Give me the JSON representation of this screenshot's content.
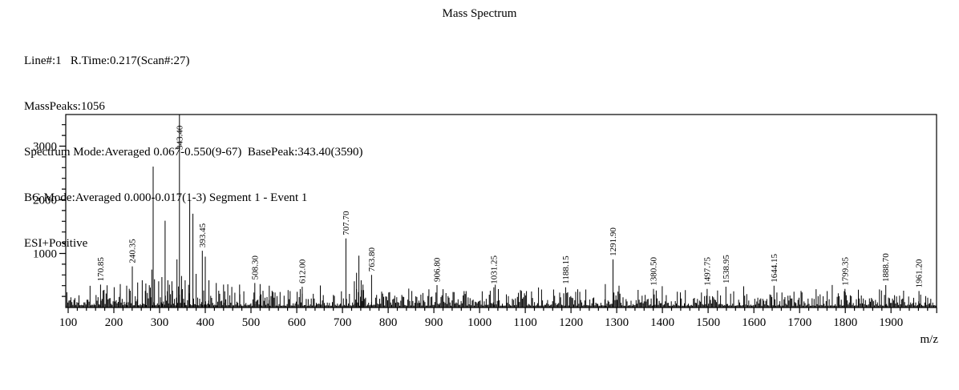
{
  "title": "Mass Spectrum",
  "header_lines": [
    "Line#:1   R.Time:0.217(Scan#:27)",
    "MassPeaks:1056",
    "Spectrum Mode:Averaged 0.067-0.550(9-67)  BasePeak:343.40(3590)",
    "BG Mode:Averaged 0.000-0.017(1-3) Segment 1 - Event 1",
    "ESI+Positive"
  ],
  "chart_data": {
    "type": "bar",
    "subtype": "mass-spectrum-stick-plot",
    "title": "Mass Spectrum",
    "xlabel": "m/z",
    "ylabel": "",
    "xlim": [
      95,
      2000
    ],
    "ylim": [
      0,
      3600
    ],
    "grid": false,
    "x_major_tick_step": 100,
    "x_minor_tick_step": 20,
    "y_major_tick_step": 1000,
    "y_minor_tick_step": 200,
    "x_tick_labels": [
      "100",
      "200",
      "300",
      "400",
      "500",
      "600",
      "700",
      "800",
      "900",
      "1000",
      "1100",
      "1200",
      "1300",
      "1400",
      "1500",
      "1600",
      "1700",
      "1800",
      "1900"
    ],
    "y_tick_labels": [
      "1000",
      "2000",
      "3000"
    ],
    "base_peak": {
      "mz": 343.4,
      "intensity": 3590
    },
    "labeled_peaks": [
      {
        "mz": 170.85,
        "intensity": 420,
        "label": "170.85"
      },
      {
        "mz": 240.35,
        "intensity": 760,
        "label": "240.35"
      },
      {
        "mz": 343.4,
        "intensity": 3590,
        "label": "343.40"
      },
      {
        "mz": 393.45,
        "intensity": 1050,
        "label": "393.45"
      },
      {
        "mz": 508.3,
        "intensity": 450,
        "label": "508.30"
      },
      {
        "mz": 612.0,
        "intensity": 380,
        "label": "612.00"
      },
      {
        "mz": 707.7,
        "intensity": 1280,
        "label": "707.70"
      },
      {
        "mz": 763.8,
        "intensity": 600,
        "label": "763.80"
      },
      {
        "mz": 906.8,
        "intensity": 410,
        "label": "906.80"
      },
      {
        "mz": 1031.25,
        "intensity": 370,
        "label": "1031.25"
      },
      {
        "mz": 1188.15,
        "intensity": 370,
        "label": "1188.15"
      },
      {
        "mz": 1291.9,
        "intensity": 890,
        "label": "1291.90"
      },
      {
        "mz": 1380.5,
        "intensity": 340,
        "label": "1380.50"
      },
      {
        "mz": 1497.75,
        "intensity": 340,
        "label": "1497.75"
      },
      {
        "mz": 1538.95,
        "intensity": 380,
        "label": "1538.95"
      },
      {
        "mz": 1644.15,
        "intensity": 400,
        "label": "1644.15"
      },
      {
        "mz": 1799.35,
        "intensity": 340,
        "label": "1799.35"
      },
      {
        "mz": 1888.7,
        "intensity": 410,
        "label": "1888.70"
      },
      {
        "mz": 1961.2,
        "intensity": 300,
        "label": "1961.20"
      }
    ],
    "unlabeled_peaks": [
      [
        214,
        430
      ],
      [
        228,
        400
      ],
      [
        252,
        460
      ],
      [
        262,
        500
      ],
      [
        270,
        440
      ],
      [
        283,
        700
      ],
      [
        286,
        2620
      ],
      [
        289,
        520
      ],
      [
        298,
        480
      ],
      [
        305,
        560
      ],
      [
        312,
        1610
      ],
      [
        318,
        500
      ],
      [
        327,
        480
      ],
      [
        338,
        890
      ],
      [
        348,
        580
      ],
      [
        356,
        500
      ],
      [
        366,
        2000
      ],
      [
        373,
        1740
      ],
      [
        380,
        620
      ],
      [
        400,
        940
      ],
      [
        408,
        500
      ],
      [
        424,
        450
      ],
      [
        440,
        420
      ],
      [
        475,
        420
      ],
      [
        520,
        430
      ],
      [
        540,
        400
      ],
      [
        726,
        480
      ],
      [
        731,
        640
      ],
      [
        736,
        960
      ],
      [
        741,
        500
      ],
      [
        745,
        420
      ],
      [
        1275,
        430
      ],
      [
        1305,
        400
      ]
    ],
    "noise": {
      "seed": 1337,
      "mz_step": 2.2,
      "base": 26,
      "amp": 310,
      "exponent": 2.4,
      "spike_prob": 0.07,
      "spike_amp": 200,
      "left_boost_until_mz": 470,
      "left_boost": 1.3,
      "max": 560
    },
    "colors": {
      "line": "#000000",
      "frame": "#000000",
      "text": "#000000"
    }
  }
}
